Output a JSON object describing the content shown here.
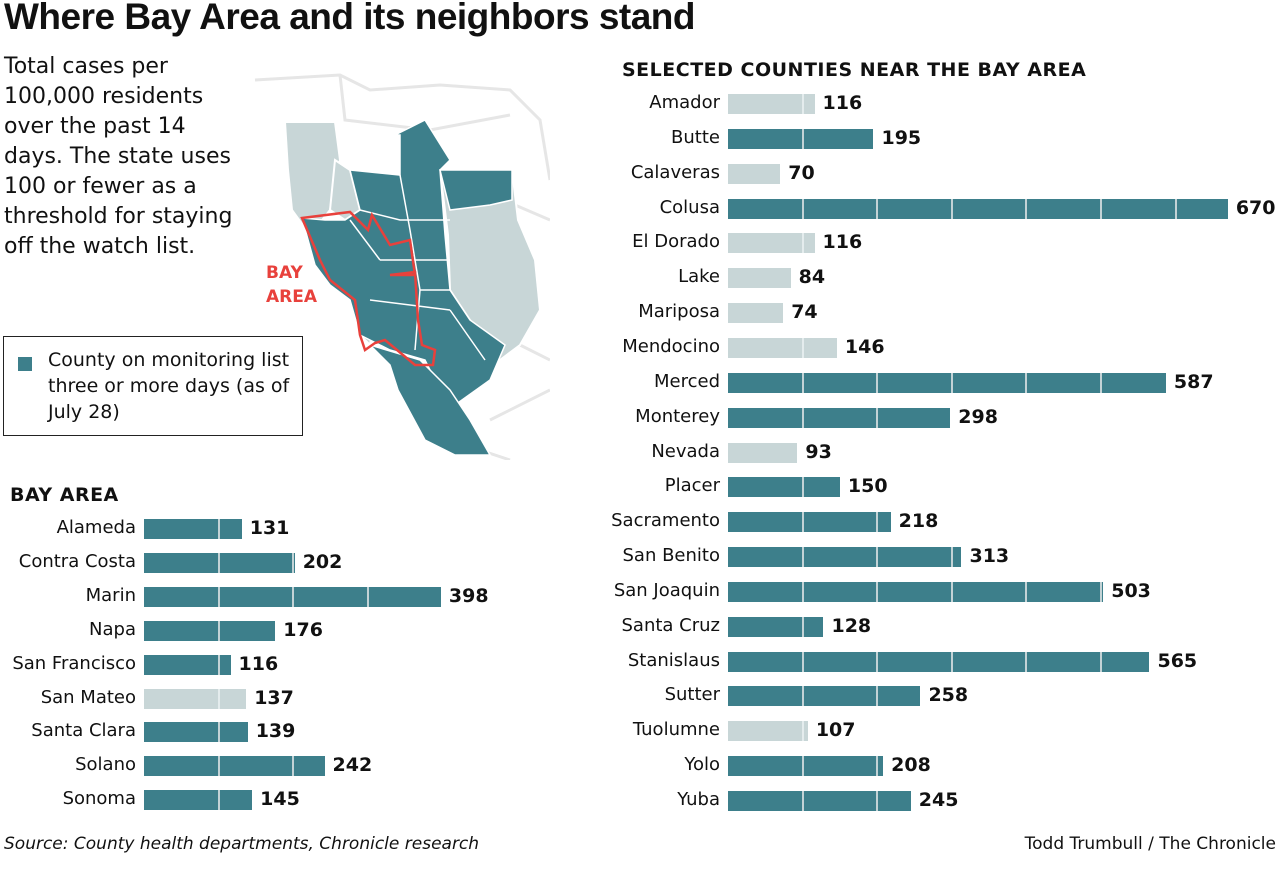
{
  "title": "Where Bay Area and its neighbors stand",
  "description": "Total cases per 100,000 residents over the past 14 days. The state uses 100 or fewer as a threshold for staying off the watch list.",
  "legend": {
    "label": "County on monitoring list three or more days (as of July 28)"
  },
  "map": {
    "region_label_1": "BAY",
    "region_label_2": "AREA"
  },
  "colors": {
    "monitoring": "#3d7f8b",
    "not_monitoring": "#c8d6d7",
    "bay_area_outline": "#e8413c"
  },
  "source": "Source: County health departments, Chronicle research",
  "credit": "Todd Trumbull / The Chronicle",
  "chart_data": [
    {
      "type": "bar",
      "orientation": "horizontal",
      "title": "BAY AREA",
      "gridline_interval": 100,
      "categories": [
        "Alameda",
        "Contra Costa",
        "Marin",
        "Napa",
        "San Francisco",
        "San Mateo",
        "Santa Clara",
        "Solano",
        "Sonoma"
      ],
      "values": [
        131,
        202,
        398,
        176,
        116,
        137,
        139,
        242,
        145
      ],
      "monitoring": [
        true,
        true,
        true,
        true,
        true,
        false,
        true,
        true,
        true
      ]
    },
    {
      "type": "bar",
      "orientation": "horizontal",
      "title": "SELECTED COUNTIES NEAR THE BAY AREA",
      "gridline_interval": 100,
      "categories": [
        "Amador",
        "Butte",
        "Calaveras",
        "Colusa",
        "El Dorado",
        "Lake",
        "Mariposa",
        "Mendocino",
        "Merced",
        "Monterey",
        "Nevada",
        "Placer",
        "Sacramento",
        "San Benito",
        "San Joaquin",
        "Santa Cruz",
        "Stanislaus",
        "Sutter",
        "Tuolumne",
        "Yolo",
        "Yuba"
      ],
      "values": [
        116,
        195,
        70,
        670,
        116,
        84,
        74,
        146,
        587,
        298,
        93,
        150,
        218,
        313,
        503,
        128,
        565,
        258,
        107,
        208,
        245
      ],
      "monitoring": [
        false,
        true,
        false,
        true,
        false,
        false,
        false,
        false,
        true,
        true,
        false,
        true,
        true,
        true,
        true,
        true,
        true,
        true,
        false,
        true,
        true
      ]
    }
  ]
}
